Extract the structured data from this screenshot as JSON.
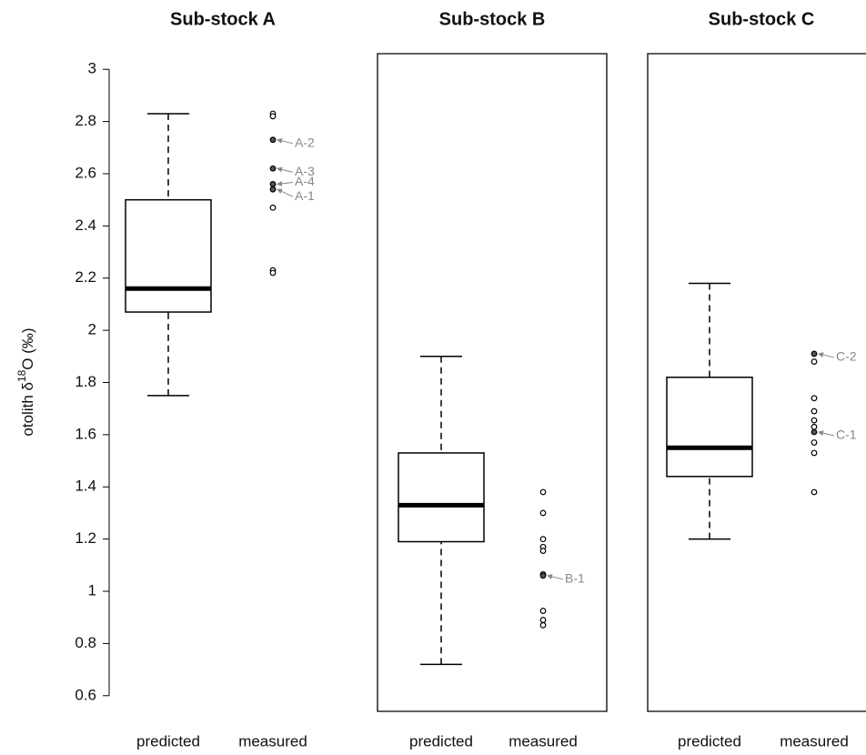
{
  "chart_data": [
    {
      "type": "box",
      "title": "Sub-stock A",
      "y_label": [
        "otolith δ",
        "18",
        "O (‰)"
      ],
      "categories": [
        "predicted",
        "measured"
      ],
      "box": {
        "whislo": 1.75,
        "q1": 2.07,
        "median": 2.16,
        "q3": 2.5,
        "whishi": 2.83
      },
      "points": [
        2.83,
        2.82,
        2.73,
        2.62,
        2.56,
        2.54,
        2.47,
        2.23,
        2.22
      ],
      "annotations": [
        {
          "label": "A-2",
          "value": 2.73
        },
        {
          "label": "A-3",
          "value": 2.62
        },
        {
          "label": "A-4",
          "value": 2.56
        },
        {
          "label": "A-1",
          "value": 2.54
        }
      ],
      "ylim": [
        0.54,
        3.06
      ],
      "yticks": [
        0.6,
        0.8,
        1,
        1.2,
        1.4,
        1.6,
        1.8,
        2,
        2.2,
        2.4,
        2.6,
        2.8,
        3
      ]
    },
    {
      "type": "box",
      "title": "Sub-stock B",
      "categories": [
        "predicted",
        "measured"
      ],
      "box": {
        "whislo": 0.72,
        "q1": 1.19,
        "median": 1.33,
        "q3": 1.53,
        "whishi": 1.9
      },
      "points": [
        1.38,
        1.3,
        1.2,
        1.17,
        1.155,
        1.065,
        1.06,
        0.925,
        0.89,
        0.87
      ],
      "annotations": [
        {
          "label": "B-1",
          "value": 1.06
        }
      ],
      "ylim": [
        0.54,
        3.06
      ]
    },
    {
      "type": "box",
      "title": "Sub-stock C",
      "categories": [
        "predicted",
        "measured"
      ],
      "box": {
        "whislo": 1.2,
        "q1": 1.44,
        "median": 1.55,
        "q3": 1.82,
        "whishi": 2.18
      },
      "points": [
        1.91,
        1.88,
        1.74,
        1.69,
        1.655,
        1.63,
        1.61,
        1.57,
        1.53,
        1.38
      ],
      "annotations": [
        {
          "label": "C-1",
          "value": 1.61
        },
        {
          "label": "C-2",
          "value": 1.91
        }
      ],
      "ylim": [
        0.54,
        3.06
      ]
    }
  ]
}
